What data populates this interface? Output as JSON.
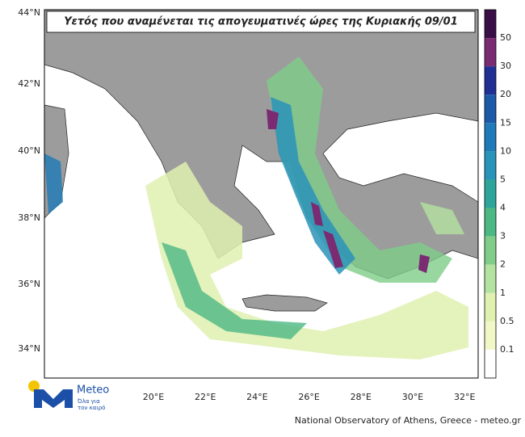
{
  "title": "Υετός που αναμένεται τις απογευματινές ώρες της Κυριακής 09/01",
  "lat_labels": [
    "44°N",
    "42°N",
    "40°N",
    "38°N",
    "36°N",
    "34°N"
  ],
  "lon_labels": [
    "20°E",
    "22°E",
    "24°E",
    "26°E",
    "28°E",
    "30°E",
    "32°E"
  ],
  "colorbar": {
    "labels": [
      "50",
      "30",
      "20",
      "15",
      "10",
      "5",
      "4",
      "3",
      "2",
      "1",
      "0.5",
      "0.1"
    ],
    "colors": [
      "#3a0f48",
      "#7b2b72",
      "#1f2f93",
      "#1c5aa8",
      "#1e7ab8",
      "#2a93b9",
      "#2ea59b",
      "#4cb883",
      "#7fcd89",
      "#b4e2a0",
      "#dff0b0",
      "#f2f7c8",
      "#ffffff"
    ]
  },
  "logo": {
    "name": "Meteo",
    "tagline": [
      "Όλα για",
      "τον καιρό"
    ]
  },
  "credit": "National Observatory of Athens, Greece - meteo.gr"
}
